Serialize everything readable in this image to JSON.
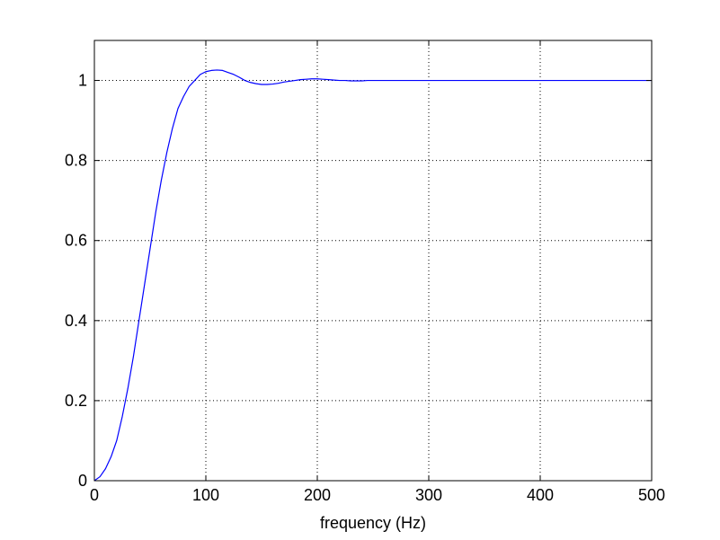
{
  "chart_data": {
    "type": "line",
    "title": "",
    "xlabel": "frequency (Hz)",
    "ylabel": "",
    "xlim": [
      0,
      500
    ],
    "ylim": [
      0,
      1.1
    ],
    "xticks": [
      0,
      100,
      200,
      300,
      400,
      500
    ],
    "yticks": [
      0,
      0.2,
      0.4,
      0.6,
      0.8,
      1
    ],
    "xtick_labels": [
      "0",
      "100",
      "200",
      "300",
      "400",
      "500"
    ],
    "ytick_labels": [
      "0",
      "0.2",
      "0.4",
      "0.6",
      "0.8",
      "1"
    ],
    "grid": true,
    "line_color": "#0000ff",
    "series": [
      {
        "x": [
          0,
          5,
          10,
          15,
          20,
          25,
          30,
          35,
          40,
          45,
          50,
          55,
          60,
          65,
          70,
          75,
          80,
          85,
          90,
          95,
          100,
          105,
          110,
          115,
          120,
          125,
          130,
          135,
          140,
          145,
          150,
          155,
          160,
          165,
          170,
          175,
          180,
          185,
          190,
          195,
          200,
          205,
          210,
          215,
          220,
          225,
          230,
          235,
          240,
          245,
          250,
          260,
          270,
          280,
          290,
          300,
          320,
          340,
          360,
          380,
          400,
          420,
          440,
          460,
          480,
          500
        ],
        "y": [
          0.0,
          0.01,
          0.03,
          0.06,
          0.1,
          0.16,
          0.23,
          0.31,
          0.4,
          0.49,
          0.58,
          0.67,
          0.75,
          0.82,
          0.88,
          0.93,
          0.96,
          0.985,
          1.0,
          1.015,
          1.022,
          1.025,
          1.026,
          1.025,
          1.02,
          1.015,
          1.008,
          1.0,
          0.995,
          0.992,
          0.99,
          0.99,
          0.991,
          0.993,
          0.996,
          0.998,
          1.0,
          1.002,
          1.003,
          1.004,
          1.004,
          1.003,
          1.002,
          1.001,
          1.0,
          1.0,
          0.999,
          0.999,
          0.999,
          1.0,
          1.0,
          1.0,
          1.0,
          1.0,
          1.0,
          1.0,
          1.0,
          1.0,
          1.0,
          1.0,
          1.0,
          1.0,
          1.0,
          1.0,
          1.0,
          1.0
        ]
      }
    ]
  }
}
